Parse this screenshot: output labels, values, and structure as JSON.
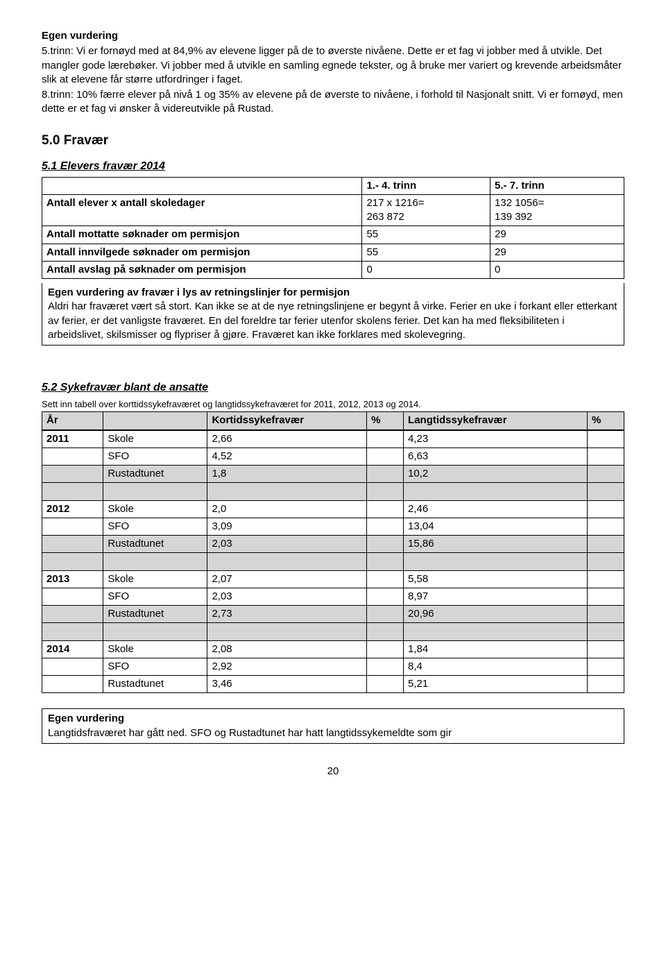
{
  "intro": {
    "heading": "Egen vurdering",
    "p1a": "5.trinn: Vi er fornøyd med at 84,9% av elevene ligger på de to øverste nivåene. Dette er et fag vi jobber med å utvikle. Det mangler gode lærebøker. Vi jobber med å utvikle en samling egnede tekster, og å bruke mer variert og krevende arbeidsmåter slik at elevene får større utfordringer i faget.",
    "p1b": "8.trinn: 10% færre elever på nivå 1 og 35% av elevene på de øverste to nivåene, i forhold til Nasjonalt snitt. Vi er fornøyd, men dette er et fag vi ønsker å videreutvikle på Rustad."
  },
  "s5_0": {
    "title": "5.0 Fravær"
  },
  "s5_1": {
    "title": "5.1 Elevers fravær  2014",
    "header_c2": "1.- 4. trinn",
    "header_c3": "5.- 7. trinn",
    "rows": [
      {
        "label": "Antall elever x antall skoledager",
        "c2a": "217 x 1216=",
        "c2b": "263 872",
        "c3a": "132 1056=",
        "c3b": "139 392"
      },
      {
        "label": "Antall mottatte søknader om permisjon",
        "c2": "55",
        "c3": "29"
      },
      {
        "label": "Antall innvilgede søknader om permisjon",
        "c2": "55",
        "c3": "29"
      },
      {
        "label": "Antall avslag på søknader om permisjon",
        "c2": "0",
        "c3": "0"
      }
    ],
    "eval_head": "Egen vurdering av fravær i lys av retningslinjer for permisjon",
    "eval_text": "Aldri har fraværet vært så stort. Kan ikke se at de nye retningslinjene er begynt å virke. Ferier en uke i forkant eller etterkant av ferier, er det vanligste fraværet. En del foreldre tar ferier utenfor skolens ferier. Det kan ha med fleksibiliteten i arbeidslivet, skilsmisser og flypriser å gjøre. Fraværet kan ikke forklares med skolevegring."
  },
  "s5_2": {
    "title": "5.2 Sykefravær blant de ansatte",
    "subtitle": "Sett inn tabell over korttidssykefraværet og langtidssykefraværet for 2011, 2012, 2013 og 2014.",
    "table": {
      "headers": [
        "År",
        "",
        "Kortidssykefravær",
        "%",
        "Langtidssykefravær",
        "%"
      ],
      "groups": [
        {
          "year": "2011",
          "rows": [
            {
              "who": "Skole",
              "k": "2,66",
              "kp": "",
              "l": "4,23",
              "lp": ""
            },
            {
              "who": "SFO",
              "k": "4,52",
              "kp": "",
              "l": "6,63",
              "lp": ""
            },
            {
              "who": "Rustadtunet",
              "k": "1,8",
              "kp": "",
              "l": "10,2",
              "lp": "",
              "shaded": true
            }
          ]
        },
        {
          "year": "2012",
          "rows": [
            {
              "who": "Skole",
              "k": "2,0",
              "kp": "",
              "l": "2,46",
              "lp": ""
            },
            {
              "who": "SFO",
              "k": "3,09",
              "kp": "",
              "l": "13,04",
              "lp": ""
            },
            {
              "who": "Rustadtunet",
              "k": "2,03",
              "kp": "",
              "l": "15,86",
              "lp": "",
              "shaded": true
            }
          ]
        },
        {
          "year": "2013",
          "rows": [
            {
              "who": "Skole",
              "k": "2,07",
              "kp": "",
              "l": "5,58",
              "lp": ""
            },
            {
              "who": "SFO",
              "k": "2,03",
              "kp": "",
              "l": "8,97",
              "lp": ""
            },
            {
              "who": "Rustadtunet",
              "k": "2,73",
              "kp": "",
              "l": "20,96",
              "lp": "",
              "shaded": true
            }
          ]
        },
        {
          "year": "2014",
          "rows": [
            {
              "who": "Skole",
              "k": "2,08",
              "kp": "",
              "l": "1,84",
              "lp": ""
            },
            {
              "who": "SFO",
              "k": "2,92",
              "kp": "",
              "l": "8,4",
              "lp": ""
            },
            {
              "who": "Rustadtunet",
              "k": "3,46",
              "kp": "",
              "l": "5,21",
              "lp": ""
            }
          ]
        }
      ]
    },
    "eval_head": "Egen vurdering",
    "eval_text": "Langtidsfraværet har gått ned. SFO og Rustadtunet har hatt langtidssykemeldte som gir"
  },
  "pagenum": "20",
  "colors": {
    "shaded_bg": "#d5d5d5",
    "border": "#000000",
    "text": "#000000",
    "bg": "#ffffff"
  }
}
